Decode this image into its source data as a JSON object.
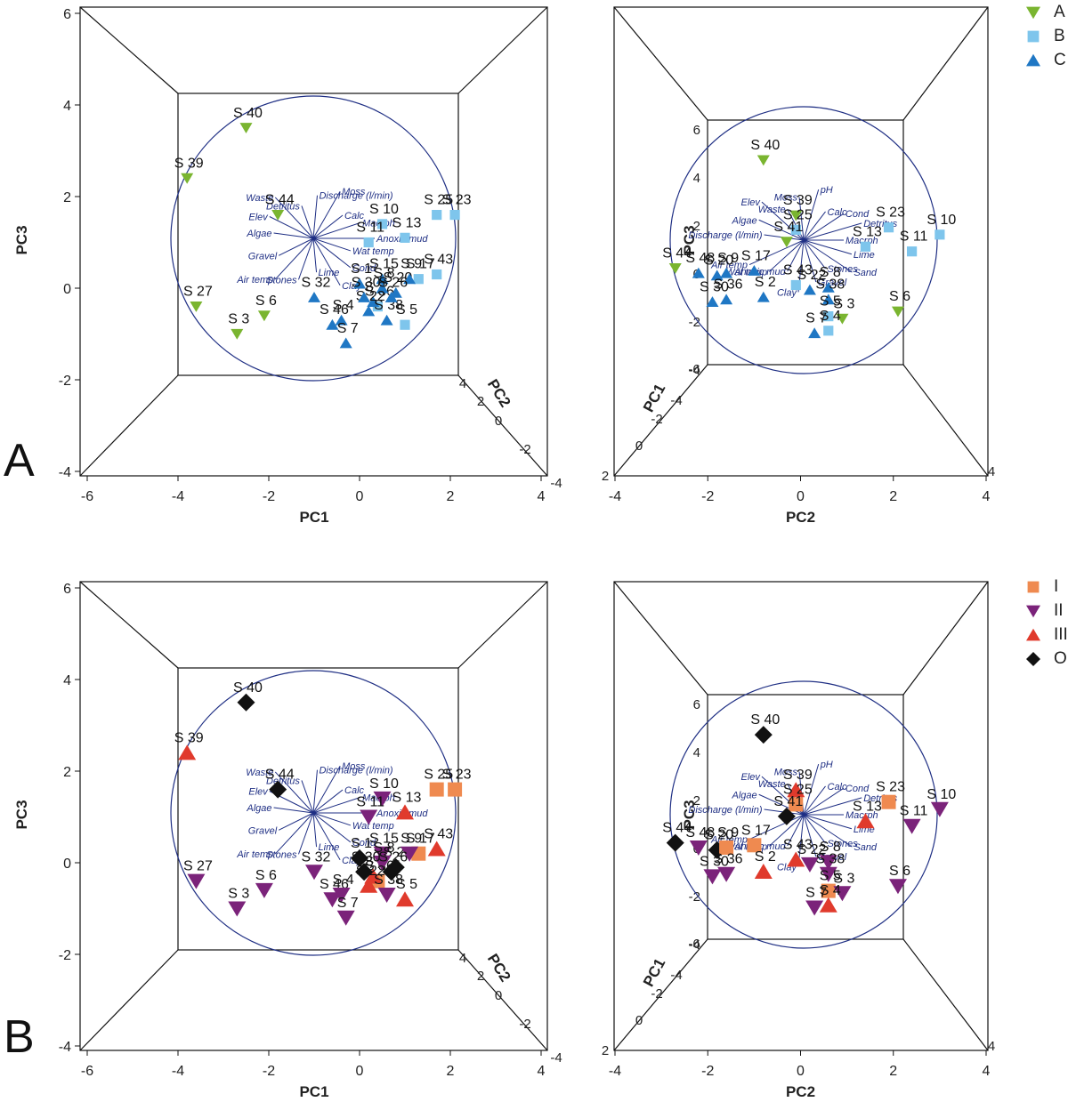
{
  "panel_labels": {
    "a": "A",
    "b": "B"
  },
  "legend_a": [
    {
      "label": "A",
      "shape": "tri-down",
      "color": "#7ab530"
    },
    {
      "label": "B",
      "shape": "square",
      "color": "#7ec5ec"
    },
    {
      "label": "C",
      "shape": "tri-up",
      "color": "#1f77c4"
    }
  ],
  "legend_b": [
    {
      "label": "I",
      "shape": "square",
      "color": "#ef8a50"
    },
    {
      "label": "II",
      "shape": "tri-down",
      "color": "#7b237a"
    },
    {
      "label": "III",
      "shape": "tri-up",
      "color": "#e03a2c"
    },
    {
      "label": "O",
      "shape": "diamond",
      "color": "#111111"
    }
  ],
  "colors": {
    "circle": "#1f2f84",
    "loading": "#1f2f84",
    "box": "#111111"
  },
  "chart_data": [
    {
      "type": "scatter",
      "panel": "A-left",
      "xlabel": "PC1",
      "ylabel": "PC3",
      "depth_label": "PC2",
      "x_ticks": [
        "-6",
        "-4",
        "-2",
        "0",
        "2",
        "4"
      ],
      "y_ticks": [
        "6",
        "4",
        "2",
        "0",
        "-2",
        "-4"
      ],
      "depth_ticks": [
        "4",
        "2",
        "0",
        "-2",
        "-4"
      ],
      "xlim": [
        -6,
        4
      ],
      "ylim": [
        -4,
        6
      ],
      "loading_labels": [
        "Algae",
        "Elev",
        "Waste",
        "Detritus",
        "Discharge (l/min)",
        "Moss",
        "Calc",
        "Macrph",
        "Anoxic mud",
        "Wat temp",
        "Cond",
        "Clay",
        "Lime",
        "Stones",
        "Air temp",
        "Gravel"
      ],
      "points": [
        {
          "label": "S 40",
          "x": -2.5,
          "y": 3.5,
          "group_ab": "A",
          "group_iv": "O"
        },
        {
          "label": "S 39",
          "x": -3.8,
          "y": 2.4,
          "group_ab": "A",
          "group_iv": "III"
        },
        {
          "label": "S 44",
          "x": -1.8,
          "y": 1.6,
          "group_ab": "A",
          "group_iv": "O"
        },
        {
          "label": "S 27",
          "x": -3.6,
          "y": -0.4,
          "group_ab": "A",
          "group_iv": "II"
        },
        {
          "label": "S 6",
          "x": -2.1,
          "y": -0.6,
          "group_ab": "A",
          "group_iv": "II"
        },
        {
          "label": "S 3",
          "x": -2.7,
          "y": -1.0,
          "group_ab": "A",
          "group_iv": "II"
        },
        {
          "label": "S 25",
          "x": 1.7,
          "y": 1.6,
          "group_ab": "B",
          "group_iv": "I"
        },
        {
          "label": "S 23",
          "x": 2.1,
          "y": 1.6,
          "group_ab": "B",
          "group_iv": "I"
        },
        {
          "label": "S 10",
          "x": 0.5,
          "y": 1.4,
          "group_ab": "B",
          "group_iv": "II"
        },
        {
          "label": "S 13",
          "x": 1.0,
          "y": 1.1,
          "group_ab": "B",
          "group_iv": "III"
        },
        {
          "label": "S 11",
          "x": 0.2,
          "y": 1.0,
          "group_ab": "B",
          "group_iv": "II"
        },
        {
          "label": "S 43",
          "x": 1.7,
          "y": 0.3,
          "group_ab": "B",
          "group_iv": "III"
        },
        {
          "label": "S 17",
          "x": 1.3,
          "y": 0.2,
          "group_ab": "B",
          "group_iv": "I"
        },
        {
          "label": "S 5",
          "x": 1.0,
          "y": -0.8,
          "group_ab": "B",
          "group_iv": "III"
        },
        {
          "label": "S 36",
          "x": 0.4,
          "y": -0.4,
          "group_ab": "B",
          "group_iv": "I"
        },
        {
          "label": "S 32",
          "x": -1.0,
          "y": -0.2,
          "group_ab": "C",
          "group_iv": "II"
        },
        {
          "label": "S 46",
          "x": -0.6,
          "y": -0.8,
          "group_ab": "C",
          "group_iv": "II"
        },
        {
          "label": "S 4",
          "x": -0.4,
          "y": -0.7,
          "group_ab": "C",
          "group_iv": "II"
        },
        {
          "label": "S 7",
          "x": -0.3,
          "y": -1.2,
          "group_ab": "C",
          "group_iv": "II"
        },
        {
          "label": "S 15",
          "x": 0.5,
          "y": 0.2,
          "group_ab": "C",
          "group_iv": "II"
        },
        {
          "label": "S 20",
          "x": 0.8,
          "y": -0.1,
          "group_ab": "C",
          "group_iv": "O"
        },
        {
          "label": "S 9",
          "x": 1.1,
          "y": 0.2,
          "group_ab": "C",
          "group_iv": "II"
        },
        {
          "label": "S 2",
          "x": 0.3,
          "y": -0.3,
          "group_ab": "C",
          "group_iv": "III"
        },
        {
          "label": "S 38",
          "x": 0.6,
          "y": -0.7,
          "group_ab": "C",
          "group_iv": "II"
        },
        {
          "label": "S 1",
          "x": 0.0,
          "y": 0.1,
          "group_ab": "C",
          "group_iv": "O"
        },
        {
          "label": "S 8",
          "x": 0.5,
          "y": 0.0,
          "group_ab": "C",
          "group_iv": "II"
        },
        {
          "label": "S 22",
          "x": 0.2,
          "y": -0.5,
          "group_ab": "C",
          "group_iv": "III"
        },
        {
          "label": "S 30",
          "x": 0.1,
          "y": -0.2,
          "group_ab": "C",
          "group_iv": "O"
        },
        {
          "label": "S 26",
          "x": 0.7,
          "y": -0.2,
          "group_ab": "C",
          "group_iv": "O"
        }
      ]
    },
    {
      "type": "scatter",
      "panel": "A-right",
      "xlabel": "PC2",
      "ylabel": "PC3",
      "depth_label": "PC1",
      "x_ticks": [
        "-4",
        "-2",
        "0",
        "2",
        "4"
      ],
      "y_ticks": [
        "6",
        "4",
        "2",
        "0",
        "-2",
        "-4"
      ],
      "depth_ticks": [
        "-6",
        "-4",
        "-2",
        "0",
        "2",
        "4"
      ],
      "xlim": [
        -4,
        4
      ],
      "ylim": [
        -4,
        6
      ],
      "loading_labels": [
        "Discharge (l/min)",
        "Algae",
        "Elev",
        "Waste",
        "Moss",
        "pH",
        "Calc",
        "Cond",
        "Detritus",
        "Macrph",
        "Lime",
        "Sand",
        "Stones",
        "Gravel",
        "Clay",
        "Anoxic mud",
        "Wat temp",
        "Air temp"
      ],
      "points": [
        {
          "label": "S 40",
          "x": -0.8,
          "y": 4.7,
          "group_ab": "A",
          "group_iv": "O"
        },
        {
          "label": "S 39",
          "x": -0.1,
          "y": 2.4,
          "group_ab": "A",
          "group_iv": "III"
        },
        {
          "label": "S 25",
          "x": -0.1,
          "y": 1.8,
          "group_ab": "B",
          "group_iv": "I"
        },
        {
          "label": "S 41",
          "x": -0.3,
          "y": 1.3,
          "group_ab": "A",
          "group_iv": "O"
        },
        {
          "label": "S 23",
          "x": 1.9,
          "y": 1.9,
          "group_ab": "B",
          "group_iv": "I"
        },
        {
          "label": "S 10",
          "x": 3.0,
          "y": 1.6,
          "group_ab": "B",
          "group_iv": "II"
        },
        {
          "label": "S 13",
          "x": 1.4,
          "y": 1.1,
          "group_ab": "B",
          "group_iv": "III"
        },
        {
          "label": "S 11",
          "x": 2.4,
          "y": 0.9,
          "group_ab": "B",
          "group_iv": "II"
        },
        {
          "label": "S 44",
          "x": -2.7,
          "y": 0.2,
          "group_ab": "A",
          "group_iv": "O"
        },
        {
          "label": "S 48",
          "x": -2.2,
          "y": 0.0,
          "group_ab": "C",
          "group_iv": "II"
        },
        {
          "label": "S 20",
          "x": -1.8,
          "y": -0.1,
          "group_ab": "C",
          "group_iv": "O"
        },
        {
          "label": "S 9",
          "x": -1.6,
          "y": 0.0,
          "group_ab": "C",
          "group_iv": "I"
        },
        {
          "label": "S 17",
          "x": -1.0,
          "y": 0.1,
          "group_ab": "C",
          "group_iv": "I"
        },
        {
          "label": "S 36",
          "x": -1.6,
          "y": -1.1,
          "group_ab": "C",
          "group_iv": "II"
        },
        {
          "label": "S 30",
          "x": -1.9,
          "y": -1.2,
          "group_ab": "C",
          "group_iv": "II"
        },
        {
          "label": "S 2",
          "x": -0.8,
          "y": -1.0,
          "group_ab": "C",
          "group_iv": "III"
        },
        {
          "label": "S 43",
          "x": -0.1,
          "y": -0.5,
          "group_ab": "B",
          "group_iv": "III"
        },
        {
          "label": "S 22",
          "x": 0.2,
          "y": -0.7,
          "group_ab": "C",
          "group_iv": "II"
        },
        {
          "label": "S 8",
          "x": 0.6,
          "y": -0.6,
          "group_ab": "C",
          "group_iv": "II"
        },
        {
          "label": "S 38",
          "x": 0.6,
          "y": -1.1,
          "group_ab": "C",
          "group_iv": "II"
        },
        {
          "label": "S 5",
          "x": 0.6,
          "y": -1.8,
          "group_ab": "B",
          "group_iv": "I"
        },
        {
          "label": "S 3",
          "x": 0.9,
          "y": -1.9,
          "group_ab": "A",
          "group_iv": "II"
        },
        {
          "label": "S 6",
          "x": 2.1,
          "y": -1.6,
          "group_ab": "A",
          "group_iv": "II"
        },
        {
          "label": "S 7",
          "x": 0.3,
          "y": -2.5,
          "group_ab": "C",
          "group_iv": "II"
        },
        {
          "label": "S 4",
          "x": 0.6,
          "y": -2.4,
          "group_ab": "B",
          "group_iv": "III"
        }
      ]
    }
  ]
}
